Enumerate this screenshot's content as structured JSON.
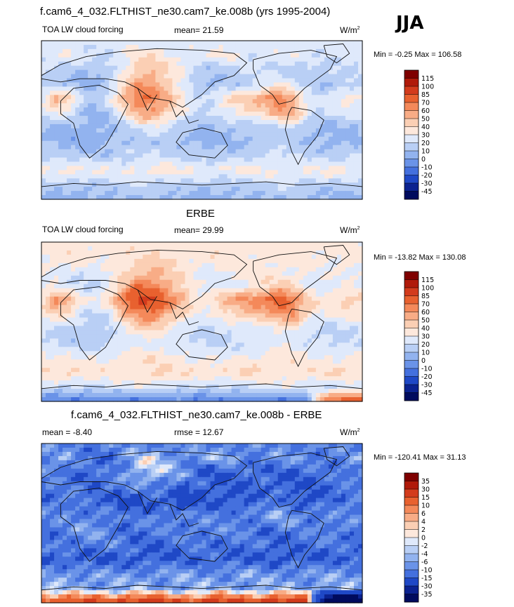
{
  "season": "JJA",
  "colors": {
    "map_frame": "#000000",
    "coast": "#111111",
    "missing": "#ffffff"
  },
  "panels": [
    {
      "title": "f.cam6_4_032.FLTHIST_ne30.cam7_ke.008b (yrs 1995-2004)",
      "left_label": "TOA LW cloud forcing",
      "center_label": "mean=  21.59",
      "units": "W/m",
      "units_exp": "2",
      "range_text": "Min =  -0.25 Max = 106.58"
    },
    {
      "title": "ERBE",
      "left_label": "TOA LW cloud forcing",
      "center_label": "mean=  29.99",
      "units": "W/m",
      "units_exp": "2",
      "range_text": "Min = -13.82 Max = 130.08"
    },
    {
      "title": "f.cam6_4_032.FLTHIST_ne30.cam7_ke.008b - ERBE",
      "left_label": "mean =  -8.40",
      "center_label": "rmse =  12.67",
      "units": "W/m",
      "units_exp": "2",
      "range_text": "Min = -120.41 Max =  31.13"
    }
  ],
  "chart_data": [
    {
      "type": "heatmap",
      "name": "model",
      "colorbar": {
        "levels": [
          "115",
          "100",
          "85",
          "70",
          "60",
          "50",
          "40",
          "30",
          "20",
          "10",
          "0",
          "-10",
          "-20",
          "-30",
          "-45"
        ],
        "colors": [
          "#7f0000",
          "#b01a0a",
          "#d33b1c",
          "#e8612f",
          "#f4895a",
          "#f8ac86",
          "#fbcfb4",
          "#fde8dc",
          "#dfe9fb",
          "#b9cff5",
          "#92b3ef",
          "#6a93e8",
          "#4470de",
          "#1f48c6",
          "#0b2290",
          "#000b5e"
        ]
      },
      "field": [
        [
          25,
          25,
          25,
          25,
          25,
          25,
          25,
          25,
          25,
          25,
          25,
          25,
          25,
          25,
          25,
          25,
          25,
          25,
          25,
          25,
          25,
          25,
          25,
          25
        ],
        [
          24,
          26,
          28,
          22,
          20,
          22,
          28,
          35,
          38,
          32,
          28,
          25,
          28,
          34,
          30,
          24,
          22,
          26,
          28,
          26,
          22,
          22,
          24,
          24
        ],
        [
          22,
          22,
          15,
          12,
          10,
          18,
          30,
          45,
          50,
          40,
          32,
          18,
          12,
          14,
          18,
          20,
          22,
          18,
          15,
          14,
          15,
          18,
          20,
          22
        ],
        [
          15,
          12,
          8,
          6,
          8,
          20,
          40,
          60,
          55,
          45,
          30,
          15,
          8,
          10,
          12,
          18,
          24,
          30,
          25,
          15,
          10,
          12,
          15,
          15
        ],
        [
          28,
          55,
          45,
          18,
          12,
          30,
          55,
          72,
          68,
          55,
          35,
          22,
          20,
          35,
          45,
          50,
          60,
          75,
          50,
          28,
          22,
          28,
          35,
          30
        ],
        [
          20,
          30,
          25,
          12,
          8,
          15,
          35,
          55,
          60,
          45,
          30,
          20,
          18,
          28,
          32,
          35,
          40,
          55,
          60,
          30,
          18,
          20,
          25,
          22
        ],
        [
          10,
          8,
          6,
          4,
          6,
          10,
          18,
          25,
          28,
          22,
          14,
          10,
          8,
          10,
          12,
          14,
          16,
          18,
          20,
          12,
          8,
          8,
          10,
          10
        ],
        [
          8,
          6,
          4,
          4,
          5,
          8,
          10,
          12,
          14,
          12,
          10,
          8,
          6,
          6,
          8,
          10,
          12,
          14,
          14,
          10,
          8,
          6,
          6,
          8
        ],
        [
          20,
          18,
          15,
          12,
          12,
          15,
          18,
          20,
          22,
          20,
          18,
          16,
          14,
          14,
          15,
          18,
          20,
          22,
          20,
          18,
          16,
          16,
          18,
          20
        ],
        [
          30,
          32,
          35,
          35,
          30,
          28,
          30,
          32,
          35,
          35,
          32,
          30,
          30,
          32,
          35,
          35,
          32,
          30,
          30,
          30,
          32,
          35,
          35,
          30
        ],
        [
          18,
          15,
          12,
          12,
          14,
          16,
          18,
          20,
          20,
          18,
          16,
          14,
          12,
          12,
          14,
          16,
          18,
          20,
          20,
          18,
          16,
          14,
          14,
          16
        ],
        [
          8,
          6,
          5,
          5,
          6,
          8,
          10,
          10,
          10,
          8,
          6,
          5,
          5,
          5,
          6,
          8,
          10,
          10,
          10,
          8,
          6,
          5,
          5,
          6
        ]
      ]
    },
    {
      "type": "heatmap",
      "name": "obs",
      "colorbar": {
        "levels": [
          "115",
          "100",
          "85",
          "70",
          "60",
          "50",
          "40",
          "30",
          "20",
          "10",
          "0",
          "-10",
          "-20",
          "-30",
          "-45"
        ],
        "colors": [
          "#7f0000",
          "#b01a0a",
          "#d33b1c",
          "#e8612f",
          "#f4895a",
          "#f8ac86",
          "#fbcfb4",
          "#fde8dc",
          "#dfe9fb",
          "#b9cff5",
          "#92b3ef",
          "#6a93e8",
          "#4470de",
          "#1f48c6",
          "#0b2290",
          "#000b5e"
        ]
      },
      "field": [
        [
          35,
          35,
          35,
          35,
          35,
          35,
          35,
          35,
          35,
          35,
          35,
          35,
          35,
          35,
          35,
          35,
          35,
          35,
          35,
          35,
          35,
          35,
          35,
          35
        ],
        [
          32,
          34,
          36,
          35,
          33,
          35,
          36,
          38,
          40,
          38,
          36,
          34,
          35,
          38,
          36,
          34,
          32,
          34,
          36,
          35,
          33,
          32,
          33,
          32
        ],
        [
          30,
          30,
          28,
          25,
          24,
          30,
          38,
          48,
          52,
          45,
          38,
          30,
          28,
          30,
          32,
          34,
          35,
          32,
          30,
          28,
          28,
          30,
          30,
          30
        ],
        [
          28,
          25,
          20,
          18,
          20,
          30,
          50,
          70,
          65,
          55,
          45,
          30,
          22,
          25,
          28,
          32,
          38,
          45,
          40,
          30,
          25,
          25,
          28,
          28
        ],
        [
          40,
          65,
          55,
          30,
          28,
          45,
          75,
          90,
          85,
          70,
          55,
          40,
          35,
          50,
          60,
          65,
          70,
          85,
          65,
          45,
          35,
          40,
          45,
          40
        ],
        [
          30,
          40,
          35,
          22,
          18,
          25,
          50,
          65,
          70,
          55,
          40,
          30,
          28,
          38,
          42,
          45,
          50,
          60,
          65,
          40,
          28,
          30,
          35,
          32
        ],
        [
          22,
          20,
          15,
          12,
          14,
          20,
          30,
          38,
          40,
          32,
          25,
          20,
          18,
          20,
          22,
          25,
          28,
          30,
          32,
          24,
          18,
          18,
          20,
          22
        ],
        [
          20,
          18,
          15,
          14,
          15,
          18,
          22,
          25,
          28,
          25,
          22,
          20,
          18,
          18,
          20,
          22,
          25,
          28,
          28,
          22,
          20,
          18,
          18,
          20
        ],
        [
          35,
          32,
          30,
          28,
          28,
          30,
          32,
          35,
          38,
          35,
          32,
          30,
          28,
          28,
          30,
          32,
          35,
          38,
          35,
          32,
          30,
          30,
          32,
          35
        ],
        [
          38,
          40,
          42,
          42,
          38,
          36,
          38,
          40,
          42,
          42,
          40,
          38,
          38,
          40,
          42,
          42,
          40,
          38,
          38,
          38,
          40,
          42,
          42,
          38
        ],
        [
          22,
          20,
          18,
          18,
          20,
          22,
          24,
          26,
          26,
          24,
          22,
          20,
          18,
          18,
          20,
          22,
          24,
          26,
          26,
          24,
          22,
          20,
          20,
          22
        ],
        [
          -10,
          -10,
          -12,
          -12,
          -10,
          -8,
          -10,
          -12,
          -12,
          -10,
          -8,
          -10,
          -12,
          -12,
          -10,
          -8,
          -10,
          -12,
          -12,
          -10,
          60,
          80,
          90,
          75
        ]
      ]
    },
    {
      "type": "heatmap",
      "name": "diff",
      "colorbar": {
        "levels": [
          "35",
          "30",
          "15",
          "10",
          "6",
          "4",
          "2",
          "0",
          "-2",
          "-4",
          "-6",
          "-10",
          "-15",
          "-30",
          "-35"
        ],
        "colors": [
          "#7f0000",
          "#b01a0a",
          "#d33b1c",
          "#e8612f",
          "#f4895a",
          "#f8ac86",
          "#fbcfb4",
          "#fde8dc",
          "#dfe9fb",
          "#b9cff5",
          "#92b3ef",
          "#6a93e8",
          "#4470de",
          "#1f48c6",
          "#0b2290",
          "#000b5e"
        ]
      },
      "field": [
        [
          -10,
          -10,
          -10,
          -10,
          -10,
          -10,
          -10,
          -10,
          -10,
          -10,
          -10,
          -10,
          -10,
          -10,
          -10,
          -10,
          -10,
          -10,
          -10,
          -10,
          -10,
          -10,
          -10,
          -10
        ],
        [
          -8,
          -8,
          -8,
          -12,
          -12,
          -12,
          -8,
          -3,
          -2,
          -6,
          -8,
          -9,
          -7,
          -4,
          -6,
          -10,
          -10,
          -8,
          -8,
          -9,
          -11,
          -10,
          -9,
          -8
        ],
        [
          -8,
          -8,
          -12,
          -13,
          -14,
          -12,
          -8,
          -3,
          -2,
          -5,
          -6,
          -12,
          -16,
          -16,
          -14,
          -14,
          -13,
          -14,
          -15,
          -14,
          -13,
          -12,
          -10,
          -8
        ],
        [
          -13,
          -13,
          -12,
          -12,
          -12,
          -10,
          -10,
          -10,
          -10,
          -10,
          -15,
          -15,
          -14,
          -15,
          -16,
          -14,
          -14,
          -15,
          -15,
          -15,
          -15,
          -13,
          -13,
          -13
        ],
        [
          -12,
          -10,
          -10,
          -12,
          -16,
          -15,
          -20,
          -18,
          -17,
          -15,
          -20,
          -18,
          -15,
          -15,
          -15,
          -15,
          -10,
          -10,
          -15,
          -17,
          -13,
          -12,
          -10,
          -10
        ],
        [
          -10,
          -10,
          -10,
          -10,
          -10,
          -10,
          -15,
          -10,
          -10,
          -10,
          -10,
          -10,
          -10,
          -10,
          -10,
          -10,
          -10,
          -5,
          -5,
          -10,
          -10,
          -10,
          -10,
          -10
        ],
        [
          -12,
          -12,
          -9,
          -8,
          -8,
          -10,
          -12,
          -13,
          -12,
          -10,
          -11,
          -10,
          -10,
          -10,
          -10,
          -11,
          -12,
          -12,
          -12,
          -12,
          -10,
          -10,
          -10,
          -12
        ],
        [
          -12,
          -12,
          -11,
          -10,
          -10,
          -10,
          -12,
          -13,
          -14,
          -13,
          -12,
          -12,
          -12,
          -12,
          -12,
          -12,
          -13,
          -14,
          -14,
          -12,
          -12,
          -12,
          -12,
          -12
        ],
        [
          -15,
          -14,
          -15,
          -16,
          -16,
          -15,
          -14,
          -15,
          -16,
          -15,
          -14,
          -14,
          -14,
          -14,
          -15,
          -14,
          -15,
          -16,
          -15,
          -14,
          -14,
          -14,
          -14,
          -15
        ],
        [
          -8,
          -8,
          -7,
          -7,
          -8,
          -8,
          -8,
          -8,
          -7,
          -7,
          -8,
          -8,
          -8,
          -8,
          -7,
          -7,
          -8,
          -8,
          -8,
          -8,
          -8,
          -7,
          -7,
          -8
        ],
        [
          -4,
          -5,
          -6,
          -6,
          -6,
          -6,
          -6,
          -6,
          -6,
          -6,
          -6,
          -6,
          -6,
          -6,
          -6,
          -6,
          -6,
          -6,
          -6,
          -6,
          -6,
          -6,
          -6,
          -6
        ],
        [
          18,
          16,
          17,
          17,
          16,
          16,
          20,
          22,
          22,
          18,
          14,
          18,
          20,
          20,
          18,
          16,
          20,
          22,
          22,
          18,
          -40,
          -60,
          -70,
          -60
        ]
      ]
    }
  ]
}
